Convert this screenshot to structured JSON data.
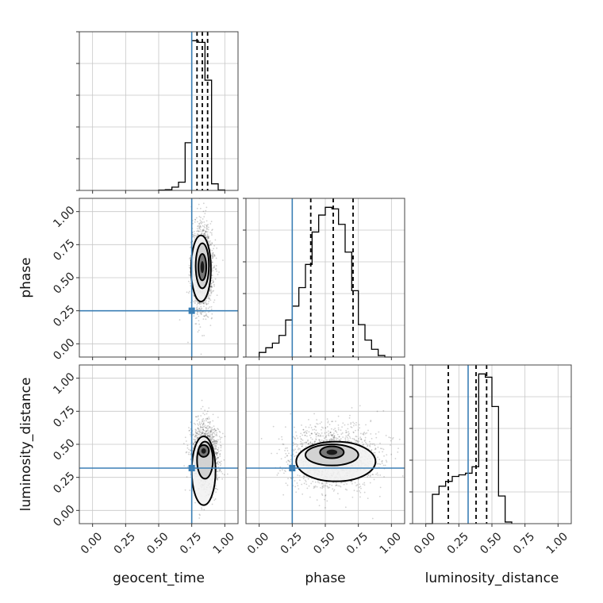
{
  "chart_data": {
    "type": "corner",
    "parameters": [
      "geocent_time",
      "phase",
      "luminosity_distance"
    ],
    "axis_range": [
      -0.1,
      1.1
    ],
    "tick_labels": [
      "0.00",
      "0.25",
      "0.50",
      "0.75",
      "1.00"
    ],
    "tick_values": [
      0,
      0.25,
      0.5,
      0.75,
      1.0
    ],
    "grid": true,
    "colors": {
      "truth": "#3b7fb5",
      "hist": "#000000",
      "grid": "#c7c7c7"
    },
    "truths": {
      "geocent_time": 0.75,
      "phase": 0.25,
      "luminosity_distance": 0.32
    },
    "histograms": [
      {
        "param": "geocent_time",
        "bin_edges": [
          0.5,
          0.55,
          0.6,
          0.65,
          0.7,
          0.75,
          0.8,
          0.85,
          0.9,
          0.95,
          1.0
        ],
        "counts": [
          0.2,
          0.5,
          2,
          5,
          29,
          91,
          90,
          67,
          4,
          0.3
        ],
        "quantile_lines": [
          0.79,
          0.83,
          0.87
        ]
      },
      {
        "param": "phase",
        "bin_edges": [
          0.0,
          0.05,
          0.1,
          0.15,
          0.2,
          0.25,
          0.3,
          0.35,
          0.4,
          0.45,
          0.5,
          0.55,
          0.6,
          0.65,
          0.7,
          0.75,
          0.8,
          0.85,
          0.9,
          0.95,
          1.0
        ],
        "counts": [
          3,
          6,
          9,
          14,
          24,
          33,
          45,
          60,
          81,
          92,
          97,
          96,
          86,
          68,
          43,
          21,
          11,
          5,
          1,
          0
        ],
        "quantile_lines": [
          0.39,
          0.56,
          0.71
        ]
      },
      {
        "param": "luminosity_distance",
        "bin_edges": [
          0.0,
          0.05,
          0.1,
          0.15,
          0.2,
          0.25,
          0.3,
          0.35,
          0.4,
          0.45,
          0.5,
          0.55,
          0.6,
          0.65
        ],
        "counts": [
          0,
          18,
          23,
          26,
          29,
          30,
          31,
          35,
          92,
          90,
          72,
          17,
          1
        ],
        "quantile_lines": [
          0.17,
          0.38,
          0.46
        ]
      }
    ],
    "scatter_panels": [
      {
        "x": "geocent_time",
        "y": "phase",
        "center": [
          0.83,
          0.57
        ],
        "spread": [
          0.04,
          0.16
        ],
        "contours": [
          {
            "cx": 0.83,
            "cy": 0.58,
            "rx": 0.03,
            "ry": 0.1
          },
          {
            "cx": 0.83,
            "cy": 0.59,
            "rx": 0.05,
            "ry": 0.17
          },
          {
            "cx": 0.82,
            "cy": 0.57,
            "rx": 0.075,
            "ry": 0.25
          }
        ]
      },
      {
        "x": "geocent_time",
        "y": "luminosity_distance",
        "center": [
          0.85,
          0.4
        ],
        "spread": [
          0.05,
          0.13
        ],
        "contours": [
          {
            "cx": 0.84,
            "cy": 0.45,
            "rx": 0.04,
            "ry": 0.045
          },
          {
            "cx": 0.85,
            "cy": 0.38,
            "rx": 0.06,
            "ry": 0.14
          },
          {
            "cx": 0.84,
            "cy": 0.3,
            "rx": 0.09,
            "ry": 0.26
          }
        ]
      },
      {
        "x": "phase",
        "y": "luminosity_distance",
        "center": [
          0.56,
          0.4
        ],
        "spread": [
          0.17,
          0.12
        ],
        "contours": [
          {
            "cx": 0.55,
            "cy": 0.44,
            "rx": 0.09,
            "ry": 0.045
          },
          {
            "cx": 0.55,
            "cy": 0.42,
            "rx": 0.2,
            "ry": 0.08
          },
          {
            "cx": 0.58,
            "cy": 0.37,
            "rx": 0.3,
            "ry": 0.15
          }
        ]
      }
    ]
  }
}
